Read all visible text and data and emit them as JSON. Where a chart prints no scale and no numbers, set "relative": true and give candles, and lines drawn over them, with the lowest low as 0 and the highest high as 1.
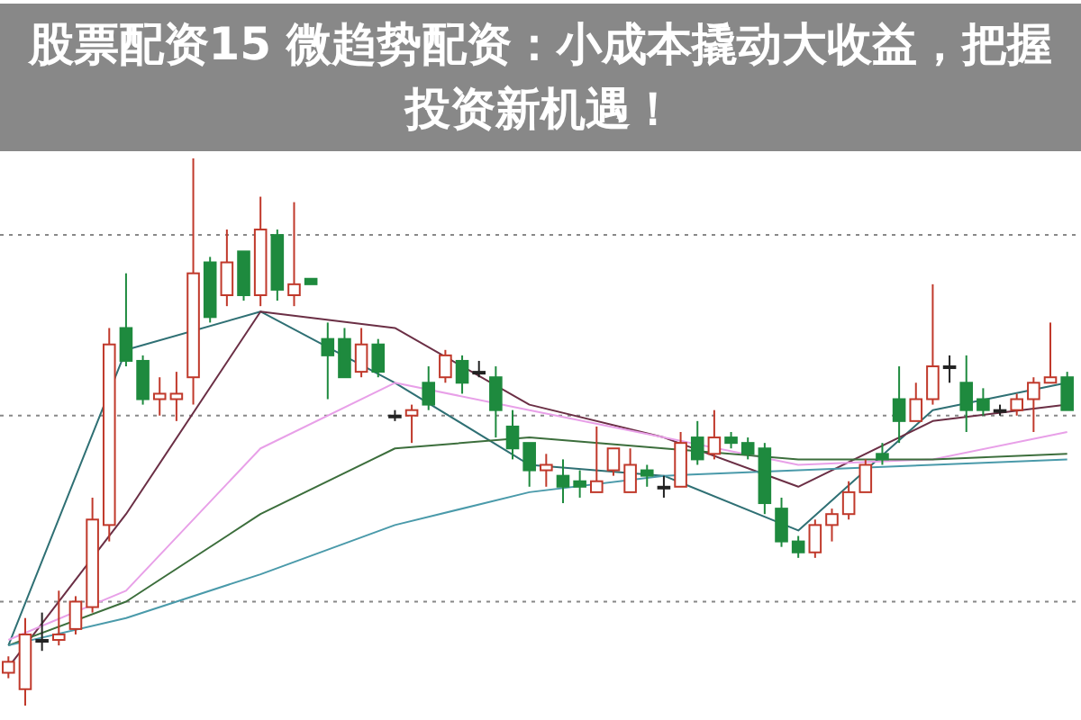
{
  "chart_data": {
    "type": "candlestick",
    "title": "股票配资15 微趋势配资：小成本撬动大收益，把握投资新机遇！",
    "relative": true,
    "grid": "y",
    "categories": [
      null,
      null,
      null,
      null,
      null,
      null,
      null,
      null,
      null,
      null,
      null,
      null,
      null,
      null,
      null,
      null,
      null,
      null,
      null,
      null,
      null,
      null,
      null,
      null,
      null,
      null,
      null,
      null,
      null,
      null,
      null,
      null,
      null,
      null,
      null,
      null,
      null,
      null,
      null,
      null,
      null,
      null,
      null,
      null,
      null,
      null,
      null,
      null,
      null,
      null,
      null,
      null,
      null,
      null,
      null,
      null,
      null,
      null,
      null,
      null,
      null,
      null,
      null,
      null
    ],
    "ohlc": [
      [
        0.06,
        0.09,
        0.05,
        0.08
      ],
      [
        0.03,
        0.16,
        0,
        0.13
      ],
      [
        0.12,
        0.17,
        0.1,
        0.12
      ],
      [
        0.12,
        0.21,
        0.11,
        0.13
      ],
      [
        0.14,
        0.2,
        0.13,
        0.19
      ],
      [
        0.18,
        0.38,
        0.17,
        0.34
      ],
      [
        0.33,
        0.69,
        0.3,
        0.66
      ],
      [
        0.69,
        0.79,
        0.62,
        0.63
      ],
      [
        0.63,
        0.64,
        0.55,
        0.56
      ],
      [
        0.56,
        0.6,
        0.53,
        0.57
      ],
      [
        0.56,
        0.61,
        0.52,
        0.57
      ],
      [
        0.6,
        1,
        0.55,
        0.79
      ],
      [
        0.81,
        0.82,
        0.7,
        0.71
      ],
      [
        0.75,
        0.87,
        0.73,
        0.81
      ],
      [
        0.83,
        0.83,
        0.74,
        0.75
      ],
      [
        0.75,
        0.93,
        0.73,
        0.87
      ],
      [
        0.86,
        0.87,
        0.74,
        0.76
      ],
      [
        0.75,
        0.92,
        0.73,
        0.77
      ],
      [
        0.78,
        0.78,
        0.77,
        0.77
      ],
      [
        0.67,
        0.7,
        0.56,
        0.64
      ],
      [
        0.67,
        0.69,
        0.6,
        0.6
      ],
      [
        0.61,
        0.69,
        0.6,
        0.66
      ],
      [
        0.66,
        0.67,
        0.6,
        0.61
      ],
      [
        0.53,
        0.54,
        0.52,
        0.53
      ],
      [
        0.53,
        0.55,
        0.48,
        0.54
      ],
      [
        0.59,
        0.62,
        0.54,
        0.55
      ],
      [
        0.6,
        0.65,
        0.59,
        0.64
      ],
      [
        0.63,
        0.64,
        0.57,
        0.59
      ],
      [
        0.61,
        0.63,
        0.6,
        0.61
      ],
      [
        0.6,
        0.62,
        0.49,
        0.54
      ],
      [
        0.51,
        0.54,
        0.45,
        0.47
      ],
      [
        0.48,
        0.48,
        0.4,
        0.43
      ],
      [
        0.43,
        0.46,
        0.4,
        0.44
      ],
      [
        0.42,
        0.45,
        0.37,
        0.4
      ],
      [
        0.41,
        0.43,
        0.38,
        0.4
      ],
      [
        0.39,
        0.51,
        0.39,
        0.41
      ],
      [
        0.43,
        0.47,
        0.42,
        0.47
      ],
      [
        0.39,
        0.47,
        0.39,
        0.44
      ],
      [
        0.43,
        0.44,
        0.4,
        0.42
      ],
      [
        0.4,
        0.42,
        0.38,
        0.4
      ],
      [
        0.4,
        0.5,
        0.4,
        0.48
      ],
      [
        0.49,
        0.52,
        0.44,
        0.45
      ],
      [
        0.46,
        0.54,
        0.45,
        0.49
      ],
      [
        0.49,
        0.5,
        0.47,
        0.48
      ],
      [
        0.48,
        0.49,
        0.45,
        0.46
      ],
      [
        0.47,
        0.48,
        0.35,
        0.37
      ],
      [
        0.36,
        0.38,
        0.29,
        0.3
      ],
      [
        0.3,
        0.31,
        0.27,
        0.28
      ],
      [
        0.28,
        0.34,
        0.27,
        0.33
      ],
      [
        0.33,
        0.36,
        0.3,
        0.35
      ],
      [
        0.35,
        0.41,
        0.34,
        0.39
      ],
      [
        0.39,
        0.45,
        0.39,
        0.44
      ],
      [
        0.46,
        0.48,
        0.44,
        0.45
      ],
      [
        0.56,
        0.62,
        0.48,
        0.52
      ],
      [
        0.52,
        0.59,
        0.52,
        0.56
      ],
      [
        0.56,
        0.77,
        0.55,
        0.62
      ],
      [
        0.62,
        0.64,
        0.59,
        0.62
      ],
      [
        0.59,
        0.64,
        0.5,
        0.54
      ],
      [
        0.56,
        0.58,
        0.53,
        0.54
      ],
      [
        0.54,
        0.55,
        0.53,
        0.54
      ],
      [
        0.54,
        0.57,
        0.53,
        0.56
      ],
      [
        0.56,
        0.6,
        0.5,
        0.59
      ],
      [
        0.59,
        0.7,
        0.59,
        0.6
      ],
      [
        0.6,
        0.61,
        0.54,
        0.54
      ]
    ],
    "series": [
      {
        "type": "line",
        "color": "#2f7074",
        "values": [
          0.11,
          null,
          null,
          null,
          null,
          null,
          null,
          0.65,
          null,
          null,
          null,
          null,
          null,
          null,
          null,
          0.72,
          null,
          null,
          null,
          null,
          null,
          null,
          null,
          0.59,
          null,
          null,
          null,
          null,
          null,
          null,
          null,
          0.44,
          null,
          null,
          null,
          null,
          null,
          null,
          null,
          0.42,
          null,
          null,
          null,
          null,
          null,
          null,
          null,
          0.32,
          null,
          null,
          null,
          null,
          null,
          null,
          null,
          0.54,
          null,
          null,
          null,
          null,
          null,
          null,
          null,
          0.59
        ]
      },
      {
        "type": "line",
        "color": "#6b2f45",
        "values": [
          0.07,
          null,
          null,
          null,
          null,
          null,
          null,
          0.35,
          null,
          null,
          null,
          null,
          null,
          null,
          null,
          0.72,
          null,
          null,
          null,
          null,
          null,
          null,
          null,
          0.69,
          null,
          null,
          null,
          null,
          null,
          null,
          null,
          0.55,
          null,
          null,
          null,
          null,
          null,
          null,
          null,
          0.49,
          null,
          null,
          null,
          null,
          null,
          null,
          null,
          0.4,
          null,
          null,
          null,
          null,
          null,
          null,
          null,
          0.52,
          null,
          null,
          null,
          null,
          null,
          null,
          null,
          0.55
        ]
      },
      {
        "type": "line",
        "color": "#e8a0e8",
        "values": [
          0.12,
          null,
          null,
          null,
          null,
          null,
          null,
          0.21,
          null,
          null,
          null,
          null,
          null,
          null,
          null,
          0.47,
          null,
          null,
          null,
          null,
          null,
          null,
          null,
          0.59,
          null,
          null,
          null,
          null,
          null,
          null,
          null,
          0.54,
          null,
          null,
          null,
          null,
          null,
          null,
          null,
          0.49,
          null,
          null,
          null,
          null,
          null,
          null,
          null,
          0.44,
          null,
          null,
          null,
          null,
          null,
          null,
          null,
          0.45,
          null,
          null,
          null,
          null,
          null,
          null,
          null,
          0.5
        ]
      },
      {
        "type": "line",
        "color": "#3c6e3c",
        "values": [
          0.11,
          null,
          null,
          null,
          null,
          null,
          null,
          0.19,
          null,
          null,
          null,
          null,
          null,
          null,
          null,
          0.35,
          null,
          null,
          null,
          null,
          null,
          null,
          null,
          0.47,
          null,
          null,
          null,
          null,
          null,
          null,
          null,
          0.49,
          null,
          null,
          null,
          null,
          null,
          null,
          null,
          0.47,
          null,
          null,
          null,
          null,
          null,
          null,
          null,
          0.45,
          null,
          null,
          null,
          null,
          null,
          null,
          null,
          0.45,
          null,
          null,
          null,
          null,
          null,
          null,
          null,
          0.46
        ]
      },
      {
        "type": "line",
        "color": "#4a9aaa",
        "values": [
          0.11,
          null,
          null,
          null,
          null,
          null,
          null,
          0.16,
          null,
          null,
          null,
          null,
          null,
          null,
          null,
          0.24,
          null,
          null,
          null,
          null,
          null,
          null,
          null,
          0.33,
          null,
          null,
          null,
          null,
          null,
          null,
          null,
          0.39,
          null,
          null,
          null,
          null,
          null,
          null,
          null,
          0.42,
          null,
          null,
          null,
          null,
          null,
          null,
          null,
          0.43,
          null,
          null,
          null,
          null,
          null,
          null,
          null,
          0.44,
          null,
          null,
          null,
          null,
          null,
          null,
          null,
          0.45
        ]
      }
    ]
  }
}
